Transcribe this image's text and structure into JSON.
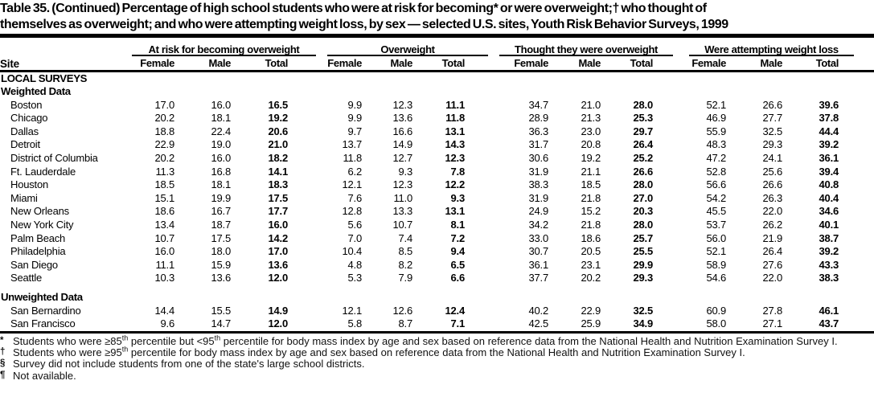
{
  "title": {
    "line1": "Table 35. (Continued) Percentage of high school students who were at risk for becoming* or were overweight;† who thought of",
    "line2": "themselves as overweight; and who were attempting weight loss, by sex — selected U.S. sites, Youth Risk Behavior Surveys, 1999"
  },
  "table": {
    "site_header": "Site",
    "groups": [
      {
        "label": "At risk for becoming overweight",
        "cols": [
          "Female",
          "Male",
          "Total"
        ]
      },
      {
        "label": "Overweight",
        "cols": [
          "Female",
          "Male",
          "Total"
        ]
      },
      {
        "label": "Thought they were overweight",
        "cols": [
          "Female",
          "Male",
          "Total"
        ]
      },
      {
        "label": "Were attempting weight loss",
        "cols": [
          "Female",
          "Male",
          "Total"
        ]
      }
    ],
    "survey_type_header": "LOCAL SURVEYS",
    "sections": [
      {
        "label": "Weighted Data",
        "rows": [
          {
            "site": "Boston",
            "values": [
              "17.0",
              "16.0",
              "16.5",
              "9.9",
              "12.3",
              "11.1",
              "34.7",
              "21.0",
              "28.0",
              "52.1",
              "26.6",
              "39.6"
            ]
          },
          {
            "site": "Chicago",
            "values": [
              "20.2",
              "18.1",
              "19.2",
              "9.9",
              "13.6",
              "11.8",
              "28.9",
              "21.3",
              "25.3",
              "46.9",
              "27.7",
              "37.8"
            ]
          },
          {
            "site": "Dallas",
            "values": [
              "18.8",
              "22.4",
              "20.6",
              "9.7",
              "16.6",
              "13.1",
              "36.3",
              "23.0",
              "29.7",
              "55.9",
              "32.5",
              "44.4"
            ]
          },
          {
            "site": "Detroit",
            "values": [
              "22.9",
              "19.0",
              "21.0",
              "13.7",
              "14.9",
              "14.3",
              "31.7",
              "20.8",
              "26.4",
              "48.3",
              "29.3",
              "39.2"
            ]
          },
          {
            "site": "District of Columbia",
            "values": [
              "20.2",
              "16.0",
              "18.2",
              "11.8",
              "12.7",
              "12.3",
              "30.6",
              "19.2",
              "25.2",
              "47.2",
              "24.1",
              "36.1"
            ]
          },
          {
            "site": "Ft. Lauderdale",
            "values": [
              "11.3",
              "16.8",
              "14.1",
              "6.2",
              "9.3",
              "7.8",
              "31.9",
              "21.1",
              "26.6",
              "52.8",
              "25.6",
              "39.4"
            ]
          },
          {
            "site": "Houston",
            "values": [
              "18.5",
              "18.1",
              "18.3",
              "12.1",
              "12.3",
              "12.2",
              "38.3",
              "18.5",
              "28.0",
              "56.6",
              "26.6",
              "40.8"
            ]
          },
          {
            "site": "Miami",
            "values": [
              "15.1",
              "19.9",
              "17.5",
              "7.6",
              "11.0",
              "9.3",
              "31.9",
              "21.8",
              "27.0",
              "54.2",
              "26.3",
              "40.4"
            ]
          },
          {
            "site": "New Orleans",
            "values": [
              "18.6",
              "16.7",
              "17.7",
              "12.8",
              "13.3",
              "13.1",
              "24.9",
              "15.2",
              "20.3",
              "45.5",
              "22.0",
              "34.6"
            ]
          },
          {
            "site": "New York City",
            "values": [
              "13.4",
              "18.7",
              "16.0",
              "5.6",
              "10.7",
              "8.1",
              "34.2",
              "21.8",
              "28.0",
              "53.7",
              "26.2",
              "40.1"
            ]
          },
          {
            "site": "Palm Beach",
            "values": [
              "10.7",
              "17.5",
              "14.2",
              "7.0",
              "7.4",
              "7.2",
              "33.0",
              "18.6",
              "25.7",
              "56.0",
              "21.9",
              "38.7"
            ]
          },
          {
            "site": "Philadelphia",
            "values": [
              "16.0",
              "18.0",
              "17.0",
              "10.4",
              "8.5",
              "9.4",
              "30.7",
              "20.5",
              "25.5",
              "52.1",
              "26.4",
              "39.2"
            ]
          },
          {
            "site": "San Diego",
            "values": [
              "11.1",
              "15.9",
              "13.6",
              "4.8",
              "8.2",
              "6.5",
              "36.1",
              "23.1",
              "29.9",
              "58.9",
              "27.6",
              "43.3"
            ]
          },
          {
            "site": "Seattle",
            "values": [
              "10.3",
              "13.6",
              "12.0",
              "5.3",
              "7.9",
              "6.6",
              "37.7",
              "20.2",
              "29.3",
              "54.6",
              "22.0",
              "38.3"
            ]
          }
        ]
      },
      {
        "label": "Unweighted Data",
        "rows": [
          {
            "site": "San Bernardino",
            "values": [
              "14.4",
              "15.5",
              "14.9",
              "12.1",
              "12.6",
              "12.4",
              "40.2",
              "22.9",
              "32.5",
              "60.9",
              "27.8",
              "46.1"
            ]
          },
          {
            "site": "San Francisco",
            "values": [
              "9.6",
              "14.7",
              "12.0",
              "5.8",
              "8.7",
              "7.1",
              "42.5",
              "25.9",
              "34.9",
              "58.0",
              "27.1",
              "43.7"
            ]
          }
        ]
      }
    ]
  },
  "footnotes": [
    {
      "symbol": "*",
      "parts": [
        {
          "text": "Students who were ≥85"
        },
        {
          "sup": "th"
        },
        {
          "text": " percentile but <95"
        },
        {
          "sup": "th"
        },
        {
          "text": " percentile for body mass index by age and sex based on reference data from the National Health and Nutrition Examination Survey I."
        }
      ]
    },
    {
      "symbol": "†",
      "parts": [
        {
          "text": "Students who were ≥95"
        },
        {
          "sup": "th"
        },
        {
          "text": " percentile for body mass index by age and sex based on reference data from the National Health and Nutrition Examination Survey I."
        }
      ]
    },
    {
      "symbol": "§",
      "parts": [
        {
          "text": "Survey did not include students from one of the state's large school districts."
        }
      ]
    },
    {
      "symbol": "¶",
      "parts": [
        {
          "text": "Not available."
        }
      ]
    }
  ]
}
